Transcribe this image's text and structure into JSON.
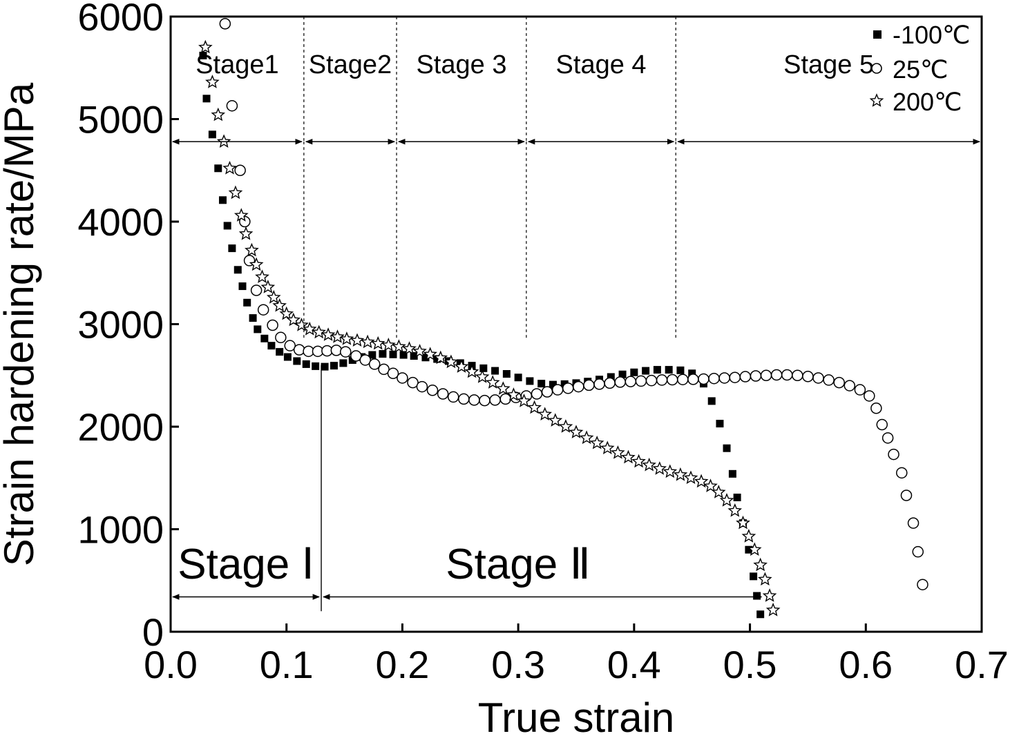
{
  "chart_data": {
    "type": "scatter",
    "title": "",
    "xlabel": "True strain",
    "ylabel": "Strain hardening rate/MPa",
    "xlim": [
      0.0,
      0.7
    ],
    "ylim": [
      0,
      6000
    ],
    "xticks": [
      "0.0",
      "0.1",
      "0.2",
      "0.3",
      "0.4",
      "0.5",
      "0.6",
      "0.7"
    ],
    "yticks": [
      "0",
      "1000",
      "2000",
      "3000",
      "4000",
      "5000",
      "6000"
    ],
    "grid": false,
    "legend_position": "top-right",
    "series": [
      {
        "name": "-100℃",
        "marker": "square-filled",
        "points": [
          [
            0.028,
            5620
          ],
          [
            0.031,
            5200
          ],
          [
            0.036,
            4850
          ],
          [
            0.041,
            4520
          ],
          [
            0.045,
            4210
          ],
          [
            0.049,
            3960
          ],
          [
            0.053,
            3740
          ],
          [
            0.058,
            3530
          ],
          [
            0.062,
            3370
          ],
          [
            0.066,
            3210
          ],
          [
            0.071,
            3060
          ],
          [
            0.075,
            2950
          ],
          [
            0.081,
            2860
          ],
          [
            0.087,
            2790
          ],
          [
            0.094,
            2730
          ],
          [
            0.101,
            2680
          ],
          [
            0.109,
            2640
          ],
          [
            0.117,
            2610
          ],
          [
            0.125,
            2590
          ],
          [
            0.133,
            2585
          ],
          [
            0.141,
            2595
          ],
          [
            0.149,
            2620
          ],
          [
            0.157,
            2650
          ],
          [
            0.165,
            2680
          ],
          [
            0.174,
            2700
          ],
          [
            0.183,
            2710
          ],
          [
            0.192,
            2705
          ],
          [
            0.201,
            2700
          ],
          [
            0.21,
            2690
          ],
          [
            0.22,
            2675
          ],
          [
            0.23,
            2660
          ],
          [
            0.24,
            2640
          ],
          [
            0.25,
            2620
          ],
          [
            0.26,
            2595
          ],
          [
            0.27,
            2570
          ],
          [
            0.28,
            2545
          ],
          [
            0.29,
            2515
          ],
          [
            0.3,
            2480
          ],
          [
            0.31,
            2445
          ],
          [
            0.32,
            2420
          ],
          [
            0.33,
            2410
          ],
          [
            0.34,
            2415
          ],
          [
            0.35,
            2425
          ],
          [
            0.36,
            2440
          ],
          [
            0.37,
            2460
          ],
          [
            0.38,
            2485
          ],
          [
            0.39,
            2510
          ],
          [
            0.4,
            2530
          ],
          [
            0.41,
            2545
          ],
          [
            0.42,
            2555
          ],
          [
            0.43,
            2555
          ],
          [
            0.44,
            2550
          ],
          [
            0.45,
            2520
          ],
          [
            0.46,
            2420
          ],
          [
            0.467,
            2250
          ],
          [
            0.474,
            2030
          ],
          [
            0.48,
            1790
          ],
          [
            0.485,
            1540
          ],
          [
            0.489,
            1310
          ],
          [
            0.494,
            1060
          ],
          [
            0.499,
            800
          ],
          [
            0.503,
            540
          ],
          [
            0.506,
            350
          ],
          [
            0.509,
            170
          ]
        ]
      },
      {
        "name": "25℃",
        "marker": "circle-open",
        "points": [
          [
            0.047,
            5930
          ],
          [
            0.053,
            5130
          ],
          [
            0.06,
            4500
          ],
          [
            0.064,
            4000
          ],
          [
            0.068,
            3620
          ],
          [
            0.074,
            3330
          ],
          [
            0.08,
            3140
          ],
          [
            0.088,
            2990
          ],
          [
            0.095,
            2870
          ],
          [
            0.103,
            2790
          ],
          [
            0.111,
            2750
          ],
          [
            0.119,
            2735
          ],
          [
            0.127,
            2735
          ],
          [
            0.135,
            2740
          ],
          [
            0.143,
            2745
          ],
          [
            0.151,
            2730
          ],
          [
            0.16,
            2690
          ],
          [
            0.168,
            2650
          ],
          [
            0.176,
            2610
          ],
          [
            0.184,
            2560
          ],
          [
            0.192,
            2520
          ],
          [
            0.2,
            2475
          ],
          [
            0.209,
            2430
          ],
          [
            0.217,
            2390
          ],
          [
            0.226,
            2355
          ],
          [
            0.235,
            2320
          ],
          [
            0.244,
            2290
          ],
          [
            0.253,
            2270
          ],
          [
            0.262,
            2260
          ],
          [
            0.271,
            2255
          ],
          [
            0.28,
            2260
          ],
          [
            0.289,
            2270
          ],
          [
            0.298,
            2285
          ],
          [
            0.307,
            2300
          ],
          [
            0.316,
            2320
          ],
          [
            0.325,
            2340
          ],
          [
            0.334,
            2360
          ],
          [
            0.343,
            2375
          ],
          [
            0.352,
            2390
          ],
          [
            0.361,
            2405
          ],
          [
            0.37,
            2415
          ],
          [
            0.379,
            2425
          ],
          [
            0.388,
            2435
          ],
          [
            0.397,
            2440
          ],
          [
            0.406,
            2445
          ],
          [
            0.415,
            2450
          ],
          [
            0.424,
            2455
          ],
          [
            0.433,
            2458
          ],
          [
            0.442,
            2460
          ],
          [
            0.451,
            2462
          ],
          [
            0.46,
            2465
          ],
          [
            0.469,
            2470
          ],
          [
            0.478,
            2475
          ],
          [
            0.487,
            2480
          ],
          [
            0.496,
            2488
          ],
          [
            0.505,
            2495
          ],
          [
            0.514,
            2500
          ],
          [
            0.523,
            2505
          ],
          [
            0.532,
            2505
          ],
          [
            0.541,
            2500
          ],
          [
            0.55,
            2490
          ],
          [
            0.559,
            2475
          ],
          [
            0.568,
            2455
          ],
          [
            0.577,
            2430
          ],
          [
            0.586,
            2400
          ],
          [
            0.595,
            2360
          ],
          [
            0.603,
            2300
          ],
          [
            0.609,
            2180
          ],
          [
            0.614,
            2020
          ],
          [
            0.619,
            1890
          ],
          [
            0.624,
            1730
          ],
          [
            0.631,
            1550
          ],
          [
            0.635,
            1330
          ],
          [
            0.641,
            1060
          ],
          [
            0.645,
            780
          ],
          [
            0.649,
            460
          ]
        ]
      },
      {
        "name": "200℃",
        "marker": "star-open",
        "points": [
          [
            0.03,
            5700
          ],
          [
            0.036,
            5360
          ],
          [
            0.041,
            5040
          ],
          [
            0.046,
            4780
          ],
          [
            0.051,
            4520
          ],
          [
            0.056,
            4280
          ],
          [
            0.061,
            4060
          ],
          [
            0.065,
            3880
          ],
          [
            0.07,
            3720
          ],
          [
            0.074,
            3580
          ],
          [
            0.079,
            3460
          ],
          [
            0.084,
            3360
          ],
          [
            0.089,
            3260
          ],
          [
            0.094,
            3180
          ],
          [
            0.1,
            3100
          ],
          [
            0.106,
            3040
          ],
          [
            0.113,
            2990
          ],
          [
            0.12,
            2950
          ],
          [
            0.128,
            2920
          ],
          [
            0.136,
            2895
          ],
          [
            0.144,
            2875
          ],
          [
            0.152,
            2855
          ],
          [
            0.161,
            2840
          ],
          [
            0.17,
            2825
          ],
          [
            0.179,
            2810
          ],
          [
            0.188,
            2795
          ],
          [
            0.197,
            2780
          ],
          [
            0.206,
            2760
          ],
          [
            0.215,
            2735
          ],
          [
            0.224,
            2705
          ],
          [
            0.233,
            2670
          ],
          [
            0.242,
            2630
          ],
          [
            0.251,
            2585
          ],
          [
            0.26,
            2535
          ],
          [
            0.269,
            2485
          ],
          [
            0.278,
            2430
          ],
          [
            0.287,
            2370
          ],
          [
            0.296,
            2310
          ],
          [
            0.305,
            2250
          ],
          [
            0.314,
            2185
          ],
          [
            0.323,
            2120
          ],
          [
            0.332,
            2060
          ],
          [
            0.341,
            2000
          ],
          [
            0.35,
            1945
          ],
          [
            0.359,
            1890
          ],
          [
            0.368,
            1840
          ],
          [
            0.377,
            1790
          ],
          [
            0.386,
            1745
          ],
          [
            0.395,
            1700
          ],
          [
            0.404,
            1660
          ],
          [
            0.413,
            1625
          ],
          [
            0.422,
            1590
          ],
          [
            0.431,
            1560
          ],
          [
            0.44,
            1530
          ],
          [
            0.449,
            1500
          ],
          [
            0.458,
            1465
          ],
          [
            0.466,
            1420
          ],
          [
            0.473,
            1360
          ],
          [
            0.48,
            1280
          ],
          [
            0.487,
            1180
          ],
          [
            0.494,
            1060
          ],
          [
            0.499,
            930
          ],
          [
            0.504,
            800
          ],
          [
            0.509,
            650
          ],
          [
            0.513,
            510
          ],
          [
            0.517,
            350
          ],
          [
            0.52,
            210
          ]
        ]
      }
    ],
    "annotations": {
      "stage_boundaries_x": [
        0.115,
        0.195,
        0.307,
        0.436
      ],
      "stage_arrow_y": 4780,
      "stage_names": [
        "Stage1",
        "Stage2",
        "Stage 3",
        "Stage 4",
        "Stage 5"
      ],
      "major_stage_boundary_x": 0.13,
      "major_stage_arrow_y": 340,
      "major_stage_names": [
        "Stage Ⅰ",
        "Stage Ⅱ"
      ],
      "major_stage_end_x": 0.51
    }
  }
}
